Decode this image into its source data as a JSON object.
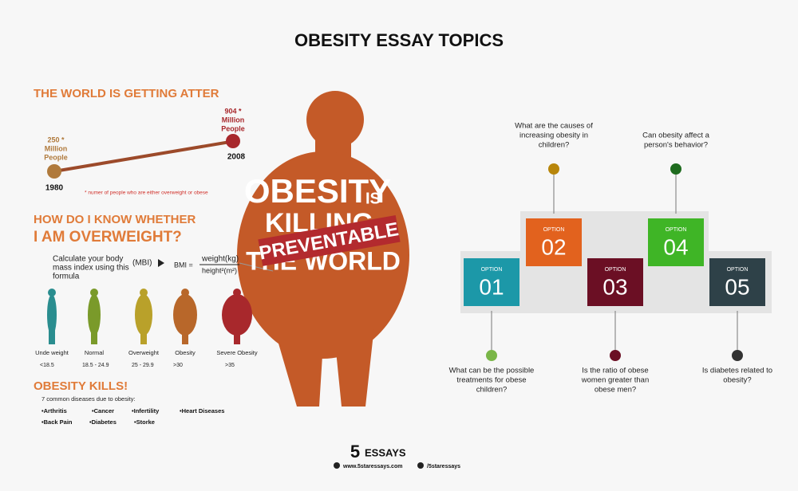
{
  "title": "OBESITY ESSAY TOPICS",
  "world": {
    "heading": "THE WORLD IS GETTING ATTER",
    "start": {
      "value": "250 *",
      "label_lines": [
        "Million",
        "People"
      ],
      "year": "1980",
      "color": "#b07a3c"
    },
    "end": {
      "value": "904 *",
      "label_lines": [
        "Million",
        "People"
      ],
      "year": "2008",
      "color": "#a8282c"
    },
    "note": "* numer of people who are either overweight or obese"
  },
  "bmi": {
    "heading_lines": [
      "HOW DO I KNOW WHETHER",
      "I AM OVERWEIGHT?"
    ],
    "intro_lines": [
      "Calculate your body",
      "mass index using this",
      "formula"
    ],
    "abbr": "(MBI)",
    "formula_left": "BMI =",
    "numerator": "weight(kg)",
    "denominator": "height²(m²)",
    "categories": [
      {
        "label": "Unde weight",
        "range": "<18.5",
        "color": "#2a8d8f"
      },
      {
        "label": "Normal",
        "range": "18.5 - 24.9",
        "color": "#7a9a2a"
      },
      {
        "label": "Overweight",
        "range": "25 - 29.9",
        "color": "#b9a12a"
      },
      {
        "label": "Obesity",
        "range": ">30",
        "color": "#b8672a"
      },
      {
        "label": "Severe Obesity",
        "range": ">35",
        "color": "#a8282c"
      }
    ]
  },
  "kills": {
    "heading": "OBESITY KILLS!",
    "subtitle": "7 common diseases due to obesity:",
    "diseases": [
      "•Arthritis",
      "•Cancer",
      "•Infertility",
      "•Heart Diseases",
      "•Back Pain",
      "•Diabetes",
      "•Storke"
    ]
  },
  "poster": {
    "line1": "OBESITY",
    "line1b": "IS",
    "line2": "KILLING",
    "line3": "THE WORLD",
    "stamp": "PREVENTABLE",
    "color": "#c45a28"
  },
  "options": [
    {
      "label": "OPTION",
      "number": "01",
      "color": "#1c98a8",
      "dot": "#7ab648",
      "question_lines": [
        "What can be the possible",
        "treatments for obese",
        "children?"
      ]
    },
    {
      "label": "OPTION",
      "number": "02",
      "color": "#e2621e",
      "dot": "#b8860b",
      "question_lines": [
        "What are the causes of",
        "increasing obesity in",
        "children?"
      ]
    },
    {
      "label": "OPTION",
      "number": "03",
      "color": "#6b0f24",
      "dot": "#6b0f24",
      "question_lines": [
        "Is the ratio of obese",
        "women greater than",
        "obese men?"
      ]
    },
    {
      "label": "OPTION",
      "number": "04",
      "color": "#3fb526",
      "dot": "#1e6b1e",
      "question_lines": [
        "Can obesity affect a",
        "person's behavior?"
      ]
    },
    {
      "label": "OPTION",
      "number": "05",
      "color": "#2e4148",
      "dot": "#333333",
      "question_lines": [
        "Is diabetes related to",
        "obesity?"
      ]
    }
  ],
  "footer": {
    "brand_number": "5",
    "brand_text": "ESSAYS",
    "website": "www.5staressays.com",
    "social": "/5staressays"
  }
}
